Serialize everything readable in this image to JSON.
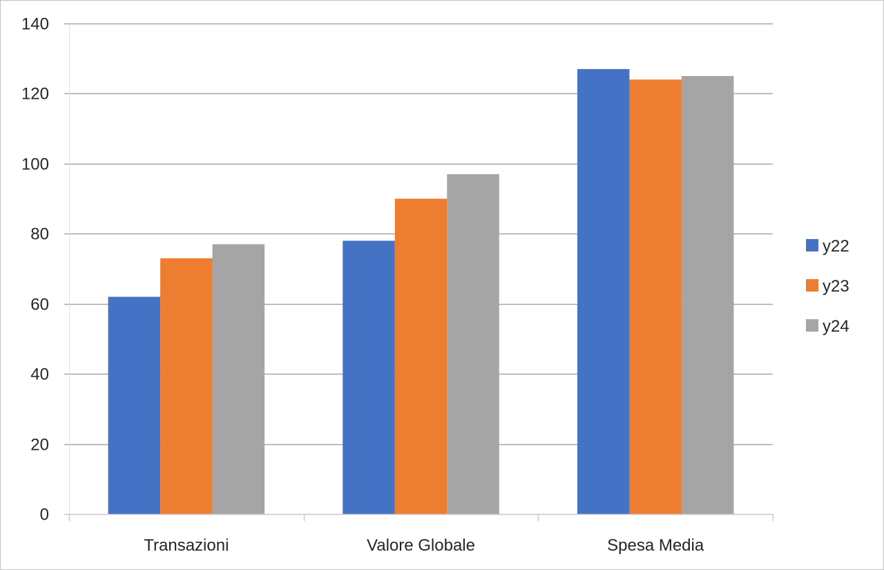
{
  "chart_data": {
    "type": "bar",
    "title": "",
    "xlabel": "",
    "ylabel": "",
    "categories": [
      "Transazioni",
      "Valore Globale",
      "Spesa Media"
    ],
    "series": [
      {
        "name": "y22",
        "color": "#4472C4",
        "values": [
          62,
          78,
          127
        ]
      },
      {
        "name": "y23",
        "color": "#ED7D31",
        "values": [
          73,
          90,
          124
        ]
      },
      {
        "name": "y24",
        "color": "#A5A5A5",
        "values": [
          77,
          97,
          125
        ]
      }
    ],
    "ylim": [
      0,
      140
    ],
    "yticks": [
      "0",
      "20",
      "40",
      "60",
      "80",
      "100",
      "120",
      "140"
    ],
    "grid": true,
    "legend_position": "right"
  }
}
